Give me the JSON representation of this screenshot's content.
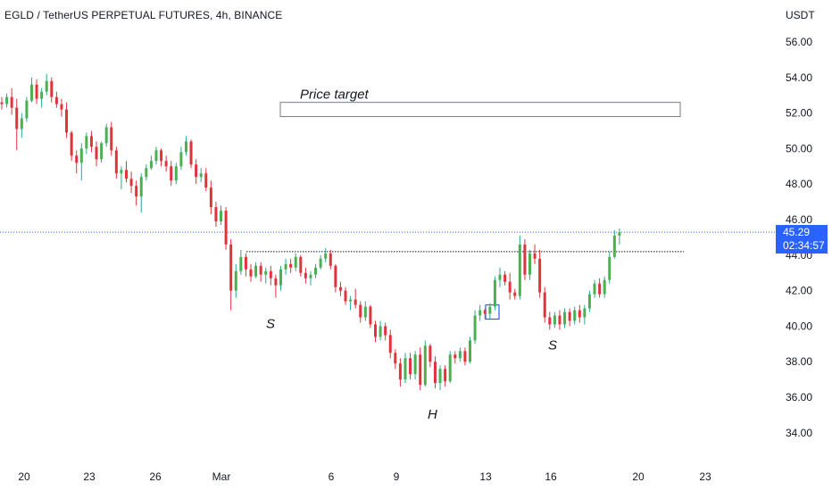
{
  "header": {
    "symbol_title": "EGLD / TetherUS PERPETUAL FUTURES, 4h, BINANCE",
    "currency": "USDT"
  },
  "price_badge": {
    "price": "45.29",
    "countdown": "02:34:57"
  },
  "colors": {
    "up": "#26a69a",
    "up_body": "#4caf50",
    "down": "#e0333c",
    "price_line": "#2962ff",
    "text": "#131722",
    "target_box": "#787b86"
  },
  "chart_data": {
    "type": "candlestick",
    "title": "EGLD / TetherUS PERPETUAL FUTURES, 4h, BINANCE",
    "ylabel": "USDT",
    "ylim": [
      33,
      57
    ],
    "y_ticks": [
      "56.00",
      "54.00",
      "52.00",
      "50.00",
      "48.00",
      "46.00",
      "44.00",
      "42.00",
      "40.00",
      "38.00",
      "36.00",
      "34.00"
    ],
    "x_ticks": [
      "20",
      "23",
      "26",
      "Mar",
      "6",
      "9",
      "13",
      "16",
      "20",
      "23"
    ],
    "current_price": 45.29,
    "resistance_level": 44.2,
    "price_target_zone": [
      51.8,
      52.6
    ],
    "annotations": [
      {
        "label": "Price target",
        "price": 52.6
      },
      {
        "label": "S",
        "price": 40.6
      },
      {
        "label": "H",
        "price": 35.5
      },
      {
        "label": "S",
        "price": 39.4
      }
    ],
    "ohlc": [
      [
        52.6,
        52.9,
        52.2,
        52.5
      ],
      [
        52.5,
        53.1,
        52.3,
        52.9
      ],
      [
        52.9,
        53.4,
        51.9,
        52.3
      ],
      [
        52.3,
        52.8,
        49.9,
        51.1
      ],
      [
        51.1,
        52.0,
        50.6,
        51.7
      ],
      [
        51.7,
        52.9,
        51.5,
        52.7
      ],
      [
        52.7,
        54.0,
        52.6,
        53.6
      ],
      [
        53.6,
        53.9,
        52.5,
        52.8
      ],
      [
        52.8,
        53.4,
        52.3,
        53.2
      ],
      [
        53.2,
        54.2,
        53.0,
        53.8
      ],
      [
        53.8,
        54.0,
        52.6,
        52.9
      ],
      [
        52.9,
        53.2,
        52.3,
        52.5
      ],
      [
        52.5,
        52.8,
        51.8,
        52.2
      ],
      [
        52.2,
        52.6,
        50.6,
        50.9
      ],
      [
        50.9,
        51.0,
        49.3,
        49.6
      ],
      [
        49.6,
        49.9,
        48.6,
        49.2
      ],
      [
        49.2,
        50.3,
        48.2,
        50.0
      ],
      [
        50.0,
        50.9,
        49.7,
        50.7
      ],
      [
        50.7,
        51.0,
        49.8,
        50.1
      ],
      [
        50.1,
        50.4,
        49.0,
        49.4
      ],
      [
        49.4,
        50.4,
        49.2,
        50.3
      ],
      [
        50.3,
        51.4,
        50.1,
        51.2
      ],
      [
        51.2,
        51.5,
        49.6,
        49.9
      ],
      [
        49.9,
        50.1,
        48.3,
        48.6
      ],
      [
        48.6,
        49.0,
        47.7,
        48.8
      ],
      [
        48.8,
        49.3,
        48.1,
        48.3
      ],
      [
        48.3,
        48.7,
        47.5,
        47.9
      ],
      [
        47.9,
        48.2,
        46.8,
        47.3
      ],
      [
        47.3,
        48.6,
        46.4,
        48.4
      ],
      [
        48.4,
        49.1,
        48.2,
        48.9
      ],
      [
        48.9,
        49.6,
        48.8,
        49.3
      ],
      [
        49.3,
        50.1,
        49.1,
        49.9
      ],
      [
        49.9,
        50.0,
        49.0,
        49.3
      ],
      [
        49.3,
        49.6,
        48.7,
        49.0
      ],
      [
        49.0,
        49.3,
        47.9,
        48.2
      ],
      [
        48.2,
        49.2,
        48.0,
        49.0
      ],
      [
        49.0,
        50.1,
        48.8,
        49.8
      ],
      [
        49.8,
        50.7,
        49.6,
        50.4
      ],
      [
        50.4,
        50.5,
        48.9,
        49.1
      ],
      [
        49.1,
        49.4,
        48.0,
        48.4
      ],
      [
        48.4,
        48.9,
        48.1,
        48.6
      ],
      [
        48.6,
        48.9,
        47.6,
        47.8
      ],
      [
        47.8,
        48.2,
        46.3,
        46.7
      ],
      [
        46.7,
        47.0,
        45.6,
        45.9
      ],
      [
        45.9,
        46.8,
        45.7,
        46.5
      ],
      [
        46.5,
        46.7,
        44.3,
        44.6
      ],
      [
        44.6,
        44.9,
        40.9,
        42.0
      ],
      [
        42.0,
        43.5,
        41.6,
        43.1
      ],
      [
        43.1,
        44.3,
        42.9,
        43.9
      ],
      [
        43.9,
        44.1,
        42.8,
        43.2
      ],
      [
        43.2,
        43.5,
        42.5,
        42.8
      ],
      [
        42.8,
        43.6,
        42.7,
        43.4
      ],
      [
        43.4,
        43.6,
        42.5,
        42.9
      ],
      [
        42.9,
        43.3,
        42.4,
        43.1
      ],
      [
        43.1,
        43.4,
        42.3,
        42.7
      ],
      [
        42.7,
        42.9,
        41.6,
        42.3
      ],
      [
        42.3,
        43.4,
        42.0,
        43.2
      ],
      [
        43.2,
        43.8,
        42.9,
        43.5
      ],
      [
        43.5,
        43.8,
        43.0,
        43.3
      ],
      [
        43.3,
        44.1,
        43.1,
        43.9
      ],
      [
        43.9,
        44.0,
        42.8,
        43.0
      ],
      [
        43.0,
        43.3,
        42.4,
        42.7
      ],
      [
        42.7,
        43.1,
        42.3,
        42.9
      ],
      [
        42.9,
        43.5,
        42.7,
        43.3
      ],
      [
        43.3,
        44.0,
        43.2,
        43.8
      ],
      [
        43.8,
        44.4,
        43.6,
        44.1
      ],
      [
        44.1,
        44.3,
        43.2,
        43.4
      ],
      [
        43.4,
        43.5,
        41.9,
        42.2
      ],
      [
        42.2,
        42.5,
        41.7,
        42.0
      ],
      [
        42.0,
        42.2,
        41.2,
        41.4
      ],
      [
        41.4,
        41.7,
        40.9,
        41.5
      ],
      [
        41.5,
        42.1,
        41.0,
        41.2
      ],
      [
        41.2,
        41.4,
        40.2,
        40.5
      ],
      [
        40.5,
        41.4,
        40.3,
        41.1
      ],
      [
        41.1,
        41.2,
        39.9,
        40.1
      ],
      [
        40.1,
        40.3,
        39.1,
        39.4
      ],
      [
        39.4,
        40.3,
        39.2,
        40.0
      ],
      [
        40.0,
        40.2,
        39.2,
        39.5
      ],
      [
        39.5,
        39.8,
        38.2,
        38.5
      ],
      [
        38.5,
        38.7,
        37.6,
        37.9
      ],
      [
        37.9,
        38.2,
        36.6,
        37.0
      ],
      [
        37.0,
        38.5,
        36.8,
        38.2
      ],
      [
        38.2,
        38.5,
        37.0,
        37.3
      ],
      [
        37.3,
        38.6,
        37.0,
        38.4
      ],
      [
        38.4,
        38.8,
        36.4,
        36.7
      ],
      [
        36.7,
        39.2,
        36.6,
        38.9
      ],
      [
        38.9,
        39.0,
        37.7,
        38.0
      ],
      [
        38.0,
        38.3,
        36.5,
        36.8
      ],
      [
        36.8,
        37.8,
        36.4,
        37.6
      ],
      [
        37.6,
        37.8,
        36.6,
        36.9
      ],
      [
        36.9,
        38.6,
        36.8,
        38.4
      ],
      [
        38.4,
        38.6,
        37.9,
        38.2
      ],
      [
        38.2,
        38.8,
        38.0,
        38.6
      ],
      [
        38.6,
        38.8,
        37.8,
        38.0
      ],
      [
        38.0,
        39.4,
        37.9,
        39.2
      ],
      [
        39.2,
        40.9,
        39.0,
        40.6
      ],
      [
        40.6,
        41.2,
        40.3,
        40.9
      ],
      [
        40.9,
        41.0,
        40.4,
        40.7
      ],
      [
        40.7,
        41.3,
        40.4,
        41.1
      ],
      [
        41.1,
        42.8,
        40.9,
        42.6
      ],
      [
        42.6,
        43.3,
        42.2,
        42.9
      ],
      [
        42.9,
        43.1,
        42.3,
        42.5
      ],
      [
        42.5,
        43.0,
        41.5,
        41.9
      ],
      [
        41.9,
        42.1,
        41.5,
        41.7
      ],
      [
        41.7,
        45.1,
        41.5,
        44.6
      ],
      [
        44.6,
        44.9,
        42.6,
        42.9
      ],
      [
        42.9,
        44.3,
        42.6,
        44.1
      ],
      [
        44.1,
        44.6,
        43.5,
        43.8
      ],
      [
        43.8,
        44.3,
        41.6,
        41.9
      ],
      [
        41.9,
        42.2,
        40.2,
        40.5
      ],
      [
        40.5,
        40.8,
        39.8,
        40.1
      ],
      [
        40.1,
        40.8,
        39.9,
        40.6
      ],
      [
        40.6,
        40.9,
        39.8,
        40.1
      ],
      [
        40.1,
        41.0,
        39.9,
        40.8
      ],
      [
        40.8,
        41.0,
        40.0,
        40.3
      ],
      [
        40.3,
        41.1,
        40.1,
        40.9
      ],
      [
        40.9,
        41.2,
        40.2,
        40.5
      ],
      [
        40.5,
        41.2,
        40.1,
        41.0
      ],
      [
        41.0,
        42.0,
        40.8,
        41.8
      ],
      [
        41.8,
        42.6,
        41.6,
        42.4
      ],
      [
        42.4,
        42.7,
        41.6,
        41.8
      ],
      [
        41.8,
        42.8,
        41.6,
        42.6
      ],
      [
        42.6,
        44.2,
        42.4,
        43.9
      ],
      [
        43.9,
        45.4,
        43.8,
        45.1
      ],
      [
        45.1,
        45.5,
        44.6,
        45.29
      ]
    ]
  }
}
